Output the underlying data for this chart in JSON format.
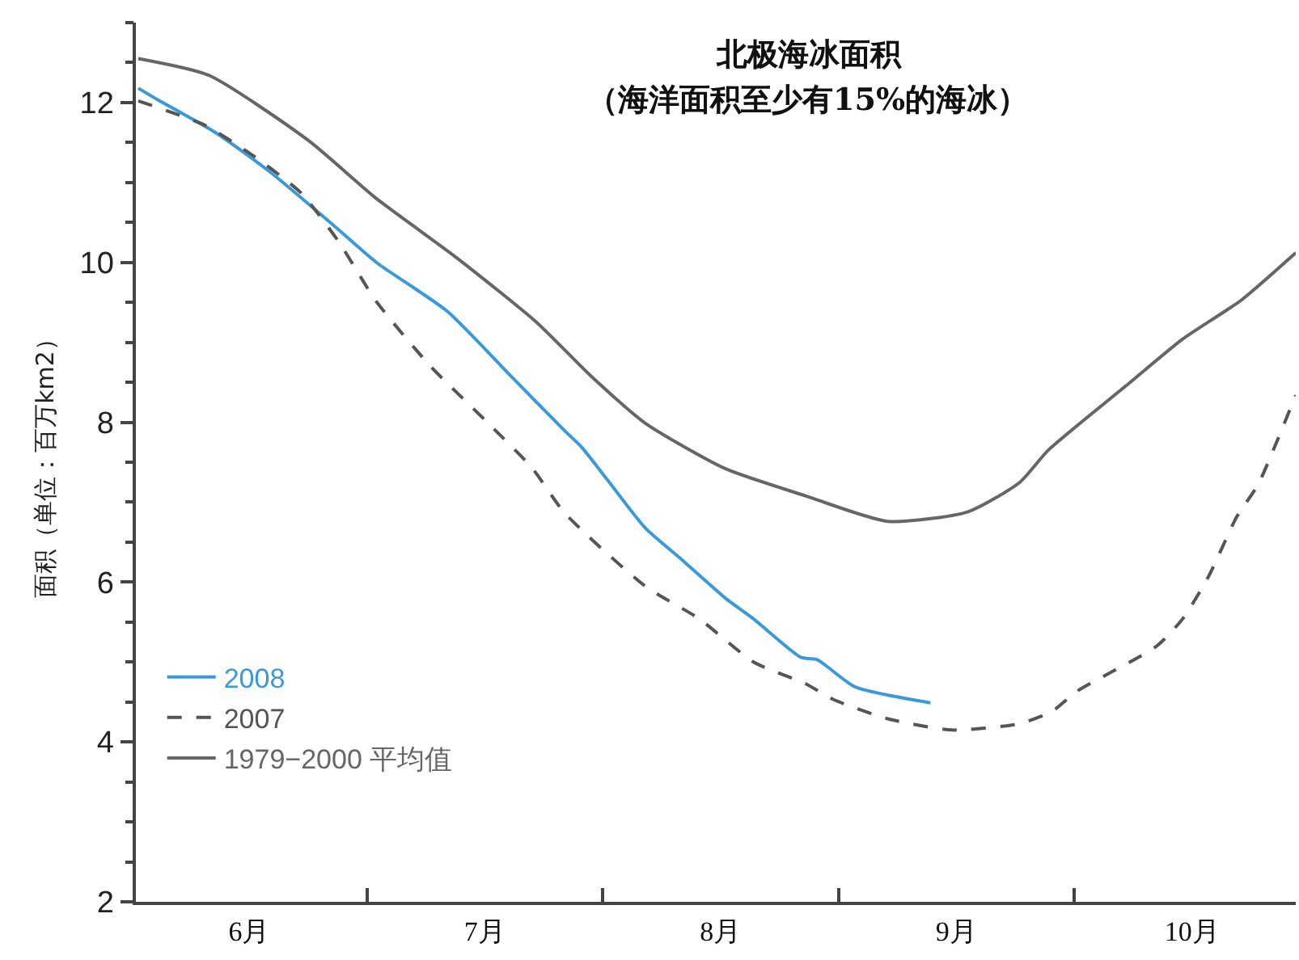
{
  "chart_data": {
    "type": "line",
    "title": "北极海冰面积",
    "subtitle": "（海洋面积至少有15%的海冰）",
    "ylabel": "面积（单位：百万km2）",
    "xlim": [
      6.02,
      10.94
    ],
    "ylim": [
      2,
      13
    ],
    "xticks": [
      {
        "value": 7,
        "label": null
      },
      {
        "value": 8,
        "label": null
      },
      {
        "value": 9,
        "label": null
      },
      {
        "value": 10,
        "label": null
      },
      {
        "value": 6.5,
        "label": "6月"
      },
      {
        "value": 7.5,
        "label": "7月"
      },
      {
        "value": 8.5,
        "label": "8月"
      },
      {
        "value": 9.5,
        "label": "9月"
      },
      {
        "value": 10.5,
        "label": "10月"
      }
    ],
    "yticks": [
      2,
      4,
      6,
      8,
      10,
      12
    ],
    "legend": "bottom left",
    "marker": "none",
    "series": [
      {
        "name": "2008",
        "color": "#3a9ad9",
        "line_style": "solid",
        "x": [
          6.03,
          6.11,
          6.36,
          6.59,
          6.86,
          7.04,
          7.34,
          7.61,
          7.84,
          7.91,
          8.02,
          8.18,
          8.34,
          8.52,
          8.64,
          8.84,
          8.91,
          9.07,
          9.39
        ],
        "values": [
          12.18,
          12.04,
          11.62,
          11.13,
          10.46,
          10.0,
          9.39,
          8.58,
          7.89,
          7.69,
          7.28,
          6.68,
          6.27,
          5.8,
          5.54,
          5.06,
          5.03,
          4.69,
          4.49
        ]
      },
      {
        "name": "2007",
        "color": "#555555",
        "line_style": "dashed",
        "x": [
          6.03,
          6.31,
          6.52,
          6.72,
          6.88,
          7.04,
          7.27,
          7.5,
          7.7,
          7.84,
          8.18,
          8.41,
          8.64,
          8.86,
          8.98,
          9.21,
          9.48,
          9.77,
          9.91,
          10.01,
          10.35,
          10.46,
          10.57,
          10.69,
          10.78,
          10.94
        ],
        "values": [
          12.02,
          11.72,
          11.33,
          10.87,
          10.26,
          9.51,
          8.7,
          8.03,
          7.43,
          6.86,
          5.95,
          5.54,
          5.0,
          4.73,
          4.53,
          4.29,
          4.15,
          4.23,
          4.39,
          4.63,
          5.2,
          5.54,
          6.07,
          6.82,
          7.22,
          8.34
        ]
      },
      {
        "name": "1979−2000 平均值",
        "color": "#666666",
        "line_style": "solid",
        "x": [
          6.03,
          6.33,
          6.75,
          7.04,
          7.38,
          7.72,
          7.95,
          8.18,
          8.52,
          8.86,
          9.21,
          9.55,
          9.77,
          9.89,
          10.23,
          10.46,
          10.71,
          10.94
        ],
        "values": [
          12.55,
          12.34,
          11.53,
          10.8,
          10.06,
          9.25,
          8.58,
          7.99,
          7.42,
          7.08,
          6.76,
          6.88,
          7.25,
          7.65,
          8.48,
          9.04,
          9.53,
          10.12
        ]
      }
    ]
  }
}
